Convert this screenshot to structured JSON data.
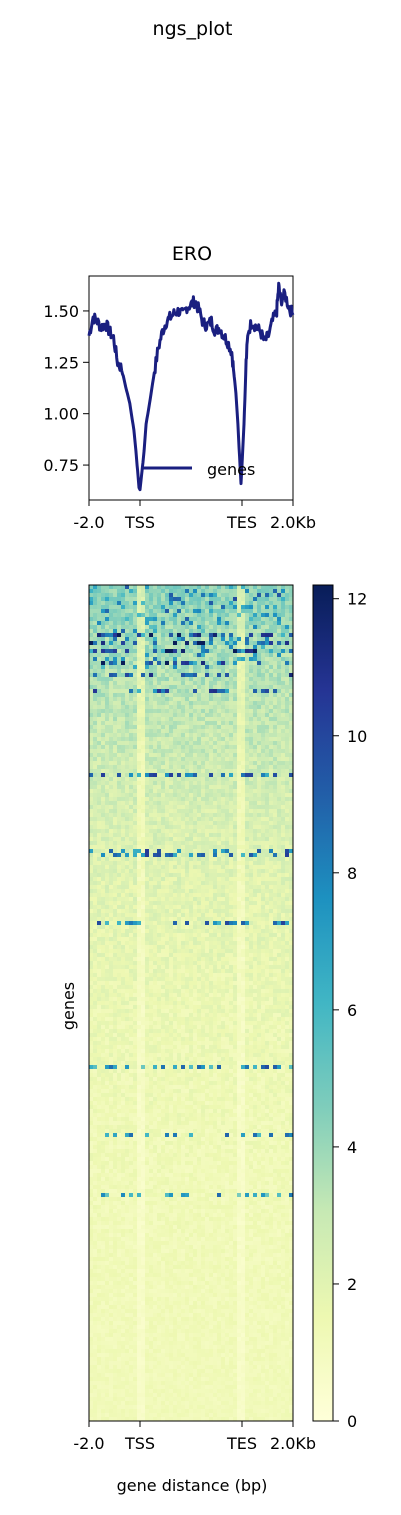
{
  "figure": {
    "suptitle": "ngs_plot",
    "xlabel": "gene distance (bp)",
    "ylabel": "genes"
  },
  "chart_data": [
    {
      "type": "line",
      "title": "ERO",
      "xlabel": "",
      "ylabel": "",
      "ylim": [
        0.58,
        1.67
      ],
      "yticks": [
        0.75,
        1.0,
        1.25,
        1.5
      ],
      "ytick_labels": [
        "0.75",
        "1.00",
        "1.25",
        "1.50"
      ],
      "xticks": [
        "-2.0",
        "TSS",
        "TES",
        "2.0Kb"
      ],
      "legend": {
        "position": "lower-right",
        "entries": [
          "genes"
        ]
      },
      "grid": false,
      "series": [
        {
          "name": "genes",
          "color": "#1a1f80",
          "x_norm": [
            0.0,
            0.02,
            0.04,
            0.06,
            0.08,
            0.1,
            0.12,
            0.14,
            0.16,
            0.18,
            0.2,
            0.22,
            0.23,
            0.24,
            0.245,
            0.25,
            0.26,
            0.27,
            0.28,
            0.3,
            0.32,
            0.34,
            0.36,
            0.38,
            0.4,
            0.42,
            0.44,
            0.46,
            0.48,
            0.5,
            0.52,
            0.54,
            0.56,
            0.58,
            0.6,
            0.62,
            0.64,
            0.66,
            0.68,
            0.7,
            0.71,
            0.72,
            0.73,
            0.74,
            0.745,
            0.75,
            0.76,
            0.77,
            0.78,
            0.8,
            0.82,
            0.84,
            0.86,
            0.88,
            0.9,
            0.92,
            0.93,
            0.94,
            0.96,
            0.98,
            1.0
          ],
          "values": [
            1.38,
            1.47,
            1.45,
            1.42,
            1.44,
            1.4,
            1.37,
            1.25,
            1.22,
            1.13,
            1.05,
            0.92,
            0.82,
            0.7,
            0.64,
            0.63,
            0.72,
            0.82,
            0.95,
            1.07,
            1.2,
            1.32,
            1.4,
            1.45,
            1.47,
            1.49,
            1.5,
            1.48,
            1.52,
            1.53,
            1.55,
            1.5,
            1.44,
            1.43,
            1.45,
            1.4,
            1.42,
            1.38,
            1.35,
            1.3,
            1.2,
            1.1,
            0.95,
            0.75,
            0.66,
            0.75,
            0.95,
            1.25,
            1.4,
            1.45,
            1.42,
            1.4,
            1.35,
            1.38,
            1.45,
            1.5,
            1.62,
            1.55,
            1.58,
            1.52,
            1.48
          ]
        }
      ]
    },
    {
      "type": "heatmap",
      "title": "",
      "xlabel": "gene distance (bp)",
      "ylabel": "genes",
      "xticks": [
        "-2.0",
        "TSS",
        "TES",
        "2.0Kb"
      ],
      "colormap": "YlGnBu",
      "color_range": [
        0,
        12.2
      ],
      "colorbar_ticks": [
        0,
        2,
        4,
        6,
        8,
        10,
        12
      ],
      "colorbar_tick_labels": [
        "0",
        "2",
        "4",
        "6",
        "8",
        "10",
        "12"
      ],
      "colormap_stops": [
        "#ffffd9",
        "#edf8b1",
        "#c7e9b4",
        "#7fcdbb",
        "#41b6c4",
        "#1d91c0",
        "#225ea8",
        "#253494",
        "#081d58"
      ]
    }
  ]
}
